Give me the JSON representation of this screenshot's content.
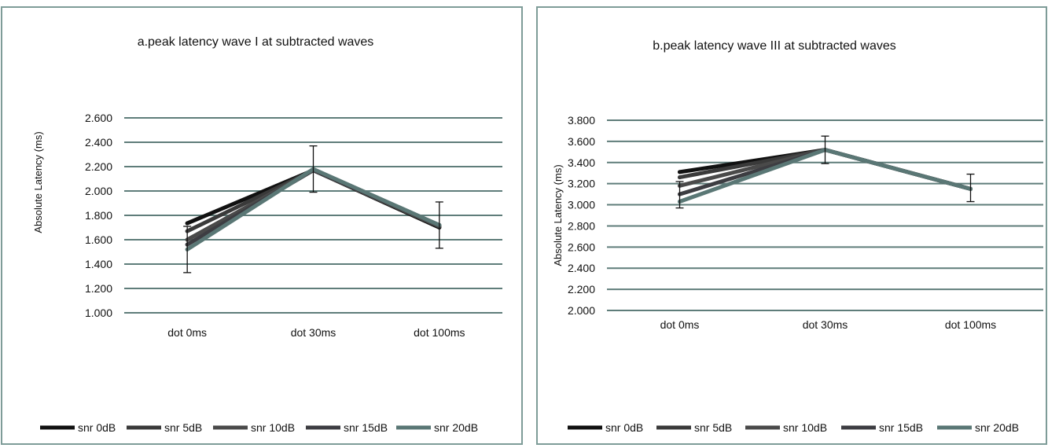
{
  "chart_data": [
    {
      "type": "line",
      "title": "a.peak latency wave I at subtracted waves",
      "xlabel": "",
      "ylabel": "Absolute Latency (ms)",
      "categories": [
        "dot 0ms",
        "dot 30ms",
        "dot 100ms"
      ],
      "ylim": [
        1.0,
        2.6
      ],
      "yticks": [
        "1.000",
        "1.200",
        "1.400",
        "1.600",
        "1.800",
        "2.000",
        "2.200",
        "2.400",
        "2.600"
      ],
      "grid": true,
      "legend_position": "bottom",
      "series": [
        {
          "name": "snr 0dB",
          "color": "#111111",
          "values": [
            1.735,
            2.17,
            1.7
          ]
        },
        {
          "name": "snr 5dB",
          "color": "#3a3a3a",
          "values": [
            1.67,
            2.17,
            1.71
          ]
        },
        {
          "name": "snr 10dB",
          "color": "#4a4a4a",
          "values": [
            1.6,
            2.17,
            1.71
          ]
        },
        {
          "name": "snr 15dB",
          "color": "#3d3d42",
          "values": [
            1.56,
            2.17,
            1.72
          ]
        },
        {
          "name": "snr 20dB",
          "color": "#5a7775",
          "values": [
            1.52,
            2.18,
            1.72
          ]
        }
      ],
      "error_bars": [
        {
          "category": "dot 0ms",
          "low": 1.33,
          "high": 1.71
        },
        {
          "category": "dot 30ms",
          "low": 1.99,
          "high": 2.37
        },
        {
          "category": "dot 100ms",
          "low": 1.53,
          "high": 1.91
        }
      ]
    },
    {
      "type": "line",
      "title": "b.peak latency wave III at subtracted waves",
      "xlabel": "",
      "ylabel": "Absolute Latency (ms)",
      "categories": [
        "dot 0ms",
        "dot 30ms",
        "dot 100ms"
      ],
      "ylim": [
        2.0,
        3.8
      ],
      "yticks": [
        "2.000",
        "2.200",
        "2.400",
        "2.600",
        "2.800",
        "3.000",
        "3.200",
        "3.400",
        "3.600",
        "3.800"
      ],
      "grid": true,
      "legend_position": "bottom",
      "series": [
        {
          "name": "snr 0dB",
          "color": "#111111",
          "values": [
            3.31,
            3.52,
            3.15
          ]
        },
        {
          "name": "snr 5dB",
          "color": "#3a3a3a",
          "values": [
            3.26,
            3.52,
            3.15
          ]
        },
        {
          "name": "snr 10dB",
          "color": "#4a4a4a",
          "values": [
            3.18,
            3.52,
            3.15
          ]
        },
        {
          "name": "snr 15dB",
          "color": "#3d3d42",
          "values": [
            3.1,
            3.52,
            3.15
          ]
        },
        {
          "name": "snr 20dB",
          "color": "#5a7775",
          "values": [
            3.03,
            3.52,
            3.15
          ]
        }
      ],
      "error_bars": [
        {
          "category": "dot 0ms",
          "low": 2.97,
          "high": 3.22
        },
        {
          "category": "dot 30ms",
          "low": 3.39,
          "high": 3.65
        },
        {
          "category": "dot 100ms",
          "low": 3.03,
          "high": 3.29
        }
      ]
    }
  ]
}
